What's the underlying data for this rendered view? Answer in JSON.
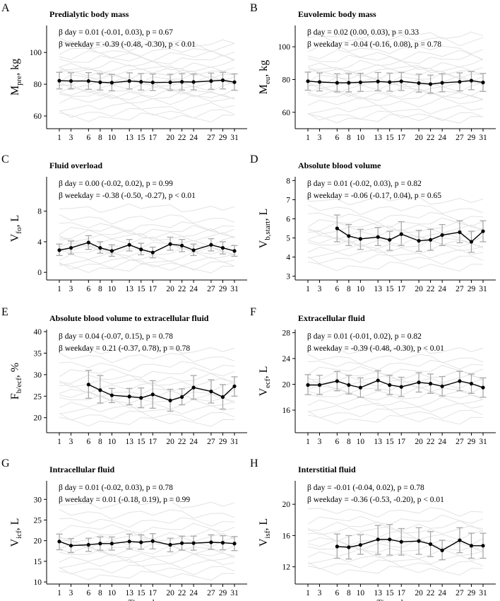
{
  "figure": {
    "xlabel": "Time, days"
  },
  "chart_data": [
    {
      "type": "line",
      "letter": "A",
      "title": "Predialytic body mass",
      "ylabel": "M",
      "ylabel_sub": "pre",
      "ylabel_unit": ", kg",
      "stat1": "β day = 0.01 (-0.01, 0.03), p = 0.67",
      "stat2": "β weekday = -0.39 (-0.48, -0.30), p < 0.01",
      "ylim": [
        52,
        117
      ],
      "yticks": [
        60,
        80,
        100
      ],
      "days": [
        1,
        3,
        6,
        8,
        10,
        13,
        15,
        17,
        20,
        22,
        24,
        27,
        29,
        31
      ],
      "mean": [
        82.2,
        82.0,
        82.0,
        81.2,
        81.0,
        82.0,
        81.5,
        81.1,
        81.2,
        81.5,
        81.4,
        82.0,
        82.5,
        81.3
      ],
      "lower": [
        77.0,
        77.0,
        76.8,
        76.3,
        75.9,
        77.0,
        76.3,
        76.0,
        76.2,
        76.3,
        76.5,
        76.8,
        77.0,
        76.2
      ],
      "upper": [
        87.5,
        87.2,
        87.3,
        86.5,
        86.2,
        87.2,
        86.7,
        86.4,
        86.3,
        86.6,
        86.4,
        87.0,
        87.5,
        86.5
      ],
      "bg_levels": [
        59,
        62,
        66,
        70,
        72,
        74,
        76,
        78,
        80,
        82,
        84,
        86,
        88,
        90,
        92,
        95,
        98,
        101,
        104,
        106
      ]
    },
    {
      "type": "line",
      "letter": "B",
      "title": "Euvolemic body mass",
      "ylabel": "M",
      "ylabel_sub": "eu",
      "ylabel_unit": ", kg",
      "stat1": "β day = 0.02 (0.00, 0.03), p = 0.33",
      "stat2": "β weekday = -0.04 (-0.16, 0.08), p = 0.78",
      "ylim": [
        50,
        113
      ],
      "yticks": [
        60,
        80,
        100
      ],
      "days": [
        1,
        3,
        6,
        8,
        10,
        13,
        15,
        17,
        20,
        22,
        24,
        27,
        29,
        31
      ],
      "mean": [
        79.0,
        78.5,
        78.0,
        78.0,
        78.3,
        78.8,
        78.4,
        78.9,
        77.8,
        77.2,
        78.0,
        78.6,
        79.3,
        78.2
      ],
      "lower": [
        73.5,
        73.0,
        72.5,
        72.5,
        72.8,
        73.2,
        72.9,
        73.3,
        72.3,
        71.7,
        72.5,
        73.1,
        73.8,
        72.7
      ],
      "upper": [
        84.5,
        84.0,
        83.5,
        83.5,
        83.8,
        84.3,
        83.9,
        84.4,
        83.3,
        82.7,
        83.5,
        84.1,
        84.8,
        83.7
      ],
      "bg_levels": [
        56,
        58,
        62,
        66,
        69,
        71,
        73,
        75,
        77,
        79,
        81,
        83,
        85,
        87,
        89,
        92,
        95,
        99,
        104,
        107
      ]
    },
    {
      "type": "line",
      "letter": "C",
      "title": "Fluid overload",
      "ylabel": "V",
      "ylabel_sub": "fo",
      "ylabel_unit": ", L",
      "stat1": "β day = 0.00 (-0.02, 0.02), p = 0.99",
      "stat2": "β weekday = -0.38 (-0.50, -0.27), p < 0.01",
      "ylim": [
        -1,
        12.5
      ],
      "yticks": [
        0,
        4,
        8
      ],
      "days": [
        1,
        3,
        6,
        8,
        10,
        13,
        15,
        17,
        20,
        22,
        24,
        27,
        29,
        31
      ],
      "mean": [
        2.9,
        3.2,
        3.9,
        3.2,
        2.8,
        3.6,
        3.0,
        2.6,
        3.7,
        3.5,
        2.9,
        3.6,
        3.2,
        2.8
      ],
      "lower": [
        2.2,
        2.4,
        3.0,
        2.5,
        2.1,
        2.8,
        2.3,
        1.9,
        2.9,
        2.7,
        2.2,
        2.8,
        2.4,
        2.1
      ],
      "upper": [
        3.7,
        4.1,
        4.8,
        4.0,
        3.6,
        4.3,
        3.8,
        3.3,
        4.6,
        4.3,
        3.7,
        4.4,
        4.0,
        3.5
      ],
      "bg_levels": [
        0.5,
        1,
        1.5,
        2,
        2.5,
        3,
        3.5,
        4,
        4.5,
        5,
        5.5,
        6,
        7,
        8.5
      ]
    },
    {
      "type": "line",
      "letter": "D",
      "title": "Absolute blood volume",
      "ylabel": "V",
      "ylabel_sub": "b,start",
      "ylabel_unit": ", L",
      "stat1": "β day = 0.01 (-0.02, 0.03), p = 0.82",
      "stat2": "β weekday = -0.06 (-0.17, 0.04), p = 0.65",
      "ylim": [
        2.8,
        8.2
      ],
      "yticks": [
        3,
        4,
        5,
        6,
        7,
        8
      ],
      "days": [
        6,
        8,
        10,
        13,
        15,
        17,
        20,
        22,
        24,
        27,
        29,
        31
      ],
      "mean": [
        5.5,
        5.1,
        4.95,
        5.05,
        4.9,
        5.2,
        4.85,
        4.9,
        5.15,
        5.3,
        4.8,
        5.35
      ],
      "lower": [
        4.8,
        4.6,
        4.4,
        4.6,
        4.35,
        4.6,
        4.3,
        4.35,
        4.6,
        4.75,
        4.25,
        4.8
      ],
      "upper": [
        6.2,
        5.7,
        5.45,
        5.55,
        5.35,
        5.85,
        5.4,
        5.45,
        5.7,
        5.9,
        5.35,
        5.9
      ],
      "bg_levels": [
        3.5,
        3.9,
        4.2,
        4.4,
        4.6,
        4.8,
        5.0,
        5.2,
        5.4,
        5.6,
        5.8,
        6.1,
        6.5,
        7.0
      ]
    },
    {
      "type": "line",
      "letter": "E",
      "title": "Absolute blood volume to extracellular fluid",
      "ylabel": "F",
      "ylabel_sub": "b/ecf",
      "ylabel_unit": ", %",
      "stat1": "β day = 0.04 (-0.07, 0.15), p = 0.78",
      "stat2": "β weekday = 0.21 (-0.37, 0.78), p = 0.78",
      "ylim": [
        16.5,
        40.5
      ],
      "yticks": [
        20,
        25,
        30,
        35,
        40
      ],
      "days": [
        6,
        8,
        10,
        13,
        15,
        17,
        20,
        22,
        24,
        27,
        29,
        31
      ],
      "mean": [
        27.7,
        26.4,
        25.2,
        24.9,
        24.6,
        25.4,
        24.0,
        24.8,
        27.0,
        26.1,
        24.8,
        27.3
      ],
      "lower": [
        24.5,
        23.4,
        23.5,
        23.0,
        22.3,
        22.2,
        21.5,
        23.0,
        24.3,
        23.4,
        22.0,
        25.0
      ],
      "upper": [
        31.0,
        29.8,
        26.8,
        26.8,
        26.9,
        28.6,
        26.6,
        26.7,
        29.8,
        28.8,
        27.7,
        29.5
      ],
      "bg_levels": [
        19,
        20.5,
        22,
        23,
        24,
        25,
        26,
        27,
        28,
        29,
        30.5,
        32,
        34,
        36
      ]
    },
    {
      "type": "line",
      "letter": "F",
      "title": "Extracellular fluid",
      "ylabel": "V",
      "ylabel_sub": "ecf",
      "ylabel_unit": ", L",
      "stat1": "β day = 0.01 (-0.01, 0.02), p = 0.82",
      "stat2": "β weekday = -0.39 (-0.48, -0.30), p < 0.01",
      "ylim": [
        12.5,
        28.5
      ],
      "yticks": [
        16,
        20,
        24,
        28
      ],
      "days": [
        1,
        3,
        6,
        8,
        10,
        13,
        15,
        17,
        20,
        22,
        24,
        27,
        29,
        31
      ],
      "mean": [
        19.9,
        19.9,
        20.5,
        19.9,
        19.5,
        20.6,
        19.9,
        19.6,
        20.3,
        20.1,
        19.7,
        20.5,
        20.1,
        19.5
      ],
      "lower": [
        18.4,
        18.4,
        19.0,
        18.5,
        18.0,
        19.1,
        18.4,
        18.1,
        18.8,
        18.6,
        18.2,
        19.0,
        18.6,
        18.0
      ],
      "upper": [
        21.5,
        21.4,
        22.0,
        21.4,
        21.0,
        22.1,
        21.4,
        21.1,
        21.8,
        21.6,
        21.2,
        22.0,
        21.6,
        21.0
      ],
      "bg_levels": [
        14.5,
        15.5,
        16.5,
        17.2,
        18,
        18.7,
        19.4,
        20,
        20.7,
        21.4,
        22.2,
        23,
        24,
        25.5
      ]
    },
    {
      "type": "line",
      "letter": "G",
      "title": "Intracellular fluid",
      "ylabel": "V",
      "ylabel_sub": "icf",
      "ylabel_unit": ", L",
      "stat1": "β day = 0.01 (-0.02, 0.03), p = 0.78",
      "stat2": "β weekday = 0.01 (-0.18, 0.19), p = 0.99",
      "ylim": [
        9.5,
        34.5
      ],
      "yticks": [
        10,
        15,
        20,
        25,
        30
      ],
      "days": [
        1,
        3,
        6,
        8,
        10,
        13,
        15,
        17,
        20,
        22,
        24,
        27,
        29,
        31
      ],
      "mean": [
        19.8,
        18.8,
        19.0,
        19.3,
        19.3,
        19.8,
        19.6,
        19.9,
        19.0,
        19.4,
        19.4,
        19.6,
        19.5,
        19.3
      ],
      "lower": [
        17.8,
        17.1,
        17.4,
        17.7,
        17.7,
        18.0,
        17.9,
        18.0,
        17.3,
        17.7,
        17.7,
        17.9,
        17.8,
        17.6
      ],
      "upper": [
        21.6,
        20.5,
        20.6,
        20.9,
        20.9,
        21.6,
        21.4,
        21.7,
        20.6,
        21.1,
        21.1,
        21.4,
        21.2,
        21.0
      ],
      "bg_levels": [
        11.5,
        13,
        14.5,
        15.5,
        16.5,
        17.5,
        18.5,
        19.5,
        20.5,
        21.5,
        23,
        24.5,
        26.5,
        29
      ]
    },
    {
      "type": "line",
      "letter": "H",
      "title": "Interstitial fluid",
      "ylabel": "V",
      "ylabel_sub": "isf",
      "ylabel_unit": ", L",
      "stat1": "β day = -0.01 (-0.04, 0.02), p = 0.78",
      "stat2": "β weekday = -0.36 (-0.53, -0.20), p < 0.01",
      "ylim": [
        9.8,
        23
      ],
      "yticks": [
        12,
        16,
        20
      ],
      "days": [
        6,
        8,
        10,
        13,
        15,
        17,
        20,
        22,
        24,
        27,
        29,
        31
      ],
      "mean": [
        14.6,
        14.5,
        14.8,
        15.5,
        15.5,
        15.2,
        15.3,
        14.9,
        14.1,
        15.4,
        14.7,
        14.7
      ],
      "lower": [
        13.1,
        13.0,
        13.6,
        13.6,
        13.5,
        13.5,
        13.6,
        13.3,
        12.9,
        13.8,
        13.1,
        13.1
      ],
      "upper": [
        16.2,
        16.0,
        16.1,
        17.3,
        17.4,
        16.9,
        17.0,
        16.5,
        15.4,
        17.0,
        16.3,
        16.3
      ],
      "bg_levels": [
        11.5,
        12.3,
        13,
        13.6,
        14.2,
        14.8,
        15.4,
        16,
        16.6,
        17.2,
        18,
        19
      ]
    }
  ]
}
